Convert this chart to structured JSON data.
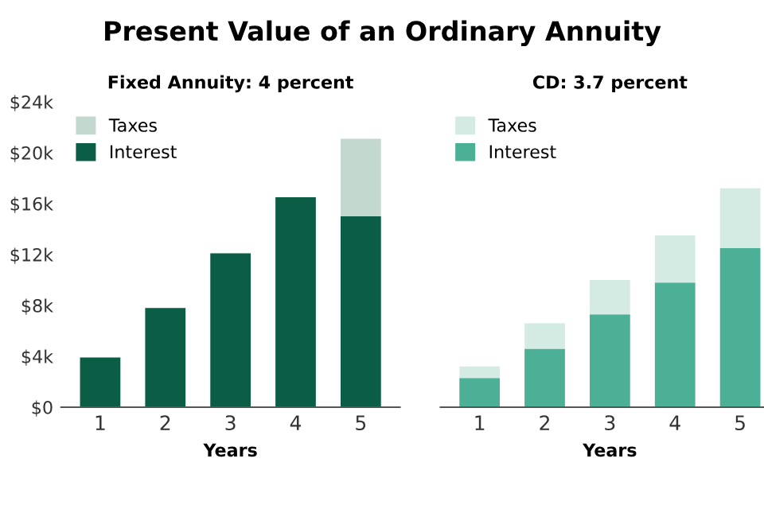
{
  "chart_data": [
    {
      "type": "bar",
      "title": "Present Value of an Ordinary Annuity",
      "subtitle": "Fixed Annuity: 4 percent",
      "xlabel": "Years",
      "categories": [
        "1",
        "2",
        "3",
        "4",
        "5"
      ],
      "stacked": true,
      "legend": "top left",
      "grid": false,
      "ylim": [
        0,
        24000
      ],
      "yticks": [
        {
          "value": 0,
          "label": "$0"
        },
        {
          "value": 4000,
          "label": "$4k"
        },
        {
          "value": 8000,
          "label": "$8k"
        },
        {
          "value": 12000,
          "label": "$12k"
        },
        {
          "value": 16000,
          "label": "$16k"
        },
        {
          "value": 20000,
          "label": "$20k"
        },
        {
          "value": 24000,
          "label": "$24k"
        }
      ],
      "series": [
        {
          "name": "Interest",
          "color": "#0b5e45",
          "values": [
            3900,
            7800,
            12100,
            16500,
            15000
          ]
        },
        {
          "name": "Taxes",
          "color": "#c3d9d0",
          "values": [
            0,
            0,
            0,
            0,
            6100
          ]
        }
      ]
    },
    {
      "type": "bar",
      "subtitle": "CD: 3.7 percent",
      "xlabel": "Years",
      "categories": [
        "1",
        "2",
        "3",
        "4",
        "5"
      ],
      "stacked": true,
      "legend": "top left",
      "grid": false,
      "tick_labels": "x",
      "ylim": [
        0,
        24000
      ],
      "series": [
        {
          "name": "Interest",
          "color": "#4bb095",
          "values": [
            2300,
            4600,
            7300,
            9800,
            12500
          ]
        },
        {
          "name": "Taxes",
          "color": "#d3ebe3",
          "values": [
            900,
            2000,
            2700,
            3700,
            4700
          ]
        }
      ]
    }
  ]
}
